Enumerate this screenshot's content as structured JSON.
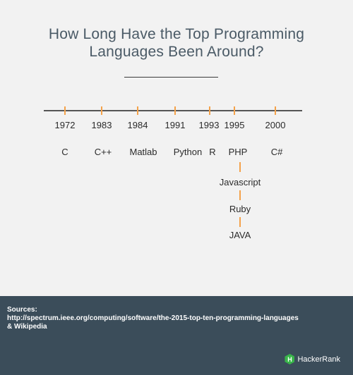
{
  "title": {
    "line1": "How Long Have the Top Programming",
    "line2": "Languages Been Around?"
  },
  "timeline": [
    {
      "year": "1972",
      "language": "C"
    },
    {
      "year": "1983",
      "language": "C++"
    },
    {
      "year": "1984",
      "language": "Matlab"
    },
    {
      "year": "1991",
      "language": "Python"
    },
    {
      "year": "1993",
      "language": "R"
    },
    {
      "year": "1995",
      "language": "PHP"
    },
    {
      "year": "2000",
      "language": "C#"
    }
  ],
  "stacked_1995": [
    "Javascript",
    "Ruby",
    "JAVA"
  ],
  "footer": {
    "sources_label": "Sources:",
    "source_url": "http://spectrum.ieee.org/computing/software/the-2015-top-ten-programming-languages",
    "source_extra": "& Wikipedia",
    "brand": "HackerRank",
    "brand_icon_letter": "H"
  },
  "colors": {
    "accent": "#f4a24a",
    "footer_bg": "#3b4d5a",
    "brand_green": "#39b54a"
  }
}
